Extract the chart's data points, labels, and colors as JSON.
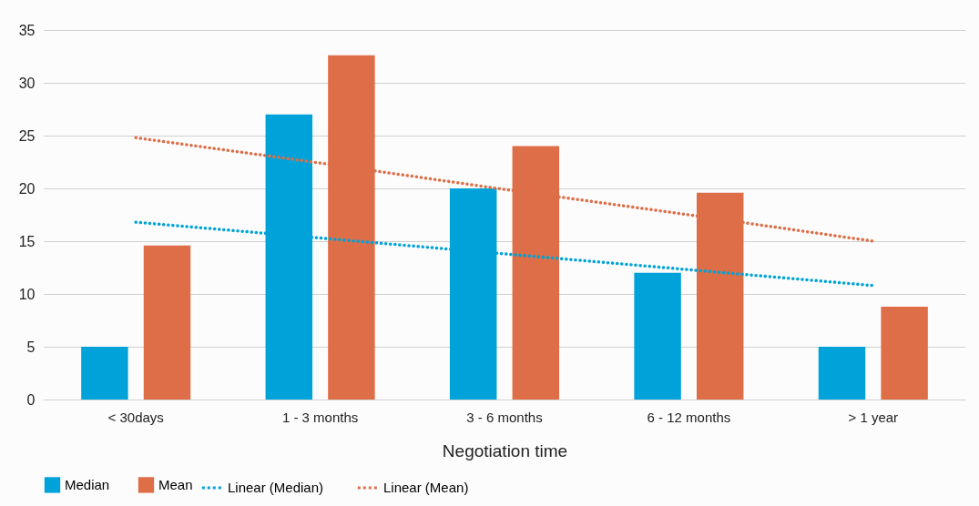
{
  "chart_data": {
    "type": "bar",
    "xlabel": "Negotiation time",
    "categories": [
      "< 30days",
      "1 - 3 months",
      "3 - 6 months",
      "6 - 12 months",
      "> 1 year"
    ],
    "series": [
      {
        "name": "Median",
        "color": "#00a3d9",
        "values": [
          5,
          27,
          20,
          12,
          5
        ]
      },
      {
        "name": "Mean",
        "color": "#dd6e47",
        "values": [
          14.6,
          32.6,
          24,
          19.6,
          8.8
        ]
      },
      {
        "name": "Linear (Median)",
        "type": "line",
        "line_style": "dotted",
        "color": "#00a3d9",
        "values": [
          16.8,
          15.3,
          13.8,
          12.3,
          10.8
        ]
      },
      {
        "name": "Linear (Mean)",
        "type": "line",
        "line_style": "dotted",
        "color": "#dd6e47",
        "values": [
          24.8,
          22.4,
          19.9,
          17.5,
          15.0
        ]
      }
    ],
    "ylim": [
      0,
      35
    ],
    "yticks": [
      0,
      5,
      10,
      15,
      20,
      25,
      30,
      35
    ],
    "grid": "y",
    "legend": "bottom"
  }
}
